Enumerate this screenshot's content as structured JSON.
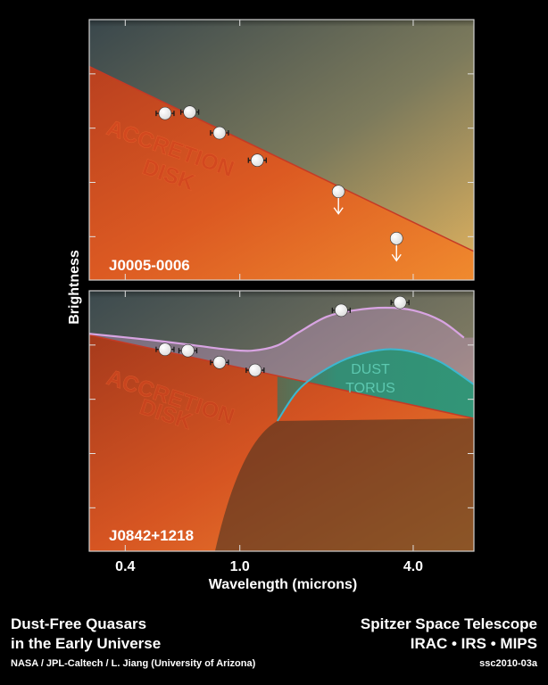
{
  "chart_data": [
    {
      "type": "line",
      "panel_label": "J0005-0006",
      "region_labels": [
        "ACCRETION",
        "DISK"
      ],
      "xlabel": "Wavelength (microns)",
      "ylabel": "Brightness",
      "x_scale": "log",
      "xlim": [
        0.3,
        6.5
      ],
      "ylim": [
        0,
        1
      ],
      "x_ticks": [
        0.4,
        1.0,
        4.0
      ],
      "x_ticklabels": [
        "0.4",
        "1.0",
        "4.0"
      ],
      "series": [
        {
          "kind": "model",
          "x": [
            0.3,
            6.5
          ],
          "y": [
            0.82,
            0.11
          ]
        },
        {
          "kind": "observed",
          "x": [
            0.55,
            0.67,
            0.85,
            1.15,
            2.2,
            3.5
          ],
          "y": [
            0.64,
            0.645,
            0.565,
            0.46,
            0.34,
            0.16
          ],
          "upper_limit": [
            false,
            false,
            false,
            false,
            true,
            true
          ]
        }
      ]
    },
    {
      "type": "line",
      "panel_label": "J0842+1218",
      "region_labels": [
        "ACCRETION",
        "DISK",
        "DUST",
        "TORUS"
      ],
      "xlabel": "Wavelength (microns)",
      "ylabel": "Brightness",
      "x_scale": "log",
      "xlim": [
        0.3,
        6.5
      ],
      "ylim": [
        0,
        1
      ],
      "x_ticks": [
        0.4,
        1.0,
        4.0
      ],
      "x_ticklabels": [
        "0.4",
        "1.0",
        "4.0"
      ],
      "series": [
        {
          "kind": "accretion-disk",
          "x": [
            0.3,
            6.5
          ],
          "y": [
            0.83,
            0.51
          ]
        },
        {
          "kind": "dust-torus",
          "x": [
            1.35,
            1.6,
            2.0,
            2.5,
            3.2,
            4.0,
            5.0,
            6.5
          ],
          "y": [
            0.5,
            0.62,
            0.7,
            0.75,
            0.775,
            0.765,
            0.725,
            0.64
          ]
        },
        {
          "kind": "total",
          "x": [
            0.3,
            0.5,
            0.7,
            0.9,
            1.1,
            1.35,
            1.6,
            2.0,
            2.5,
            3.2,
            4.0,
            5.0,
            6.0
          ],
          "y": [
            0.835,
            0.81,
            0.79,
            0.775,
            0.77,
            0.79,
            0.84,
            0.9,
            0.925,
            0.935,
            0.925,
            0.885,
            0.82
          ]
        },
        {
          "kind": "observed",
          "x": [
            0.55,
            0.66,
            0.85,
            1.13,
            2.25,
            3.6
          ],
          "y": [
            0.775,
            0.77,
            0.725,
            0.695,
            0.925,
            0.955
          ]
        }
      ]
    }
  ],
  "caption": {
    "title_line1": "Dust-Free Quasars",
    "title_line2": "in the Early Universe",
    "credit": "NASA / JPL-Caltech / L. Jiang (University of Arizona)",
    "telescope_line1": "Spitzer Space Telescope",
    "telescope_line2": "IRAC • IRS • MIPS",
    "id": "ssc2010-03a"
  },
  "colors": {
    "disk_light": "#ef7a2a",
    "disk_dark": "#b8401e",
    "sky_top": "#3c4a4e",
    "sky_bottom": "#d8ae62",
    "torus_fill": "#2f9a78",
    "torus_edge": "#38b4c8",
    "total_line": "#d9a0e0",
    "disk_line": "#cc3a2a",
    "frame": "#cccccc"
  }
}
